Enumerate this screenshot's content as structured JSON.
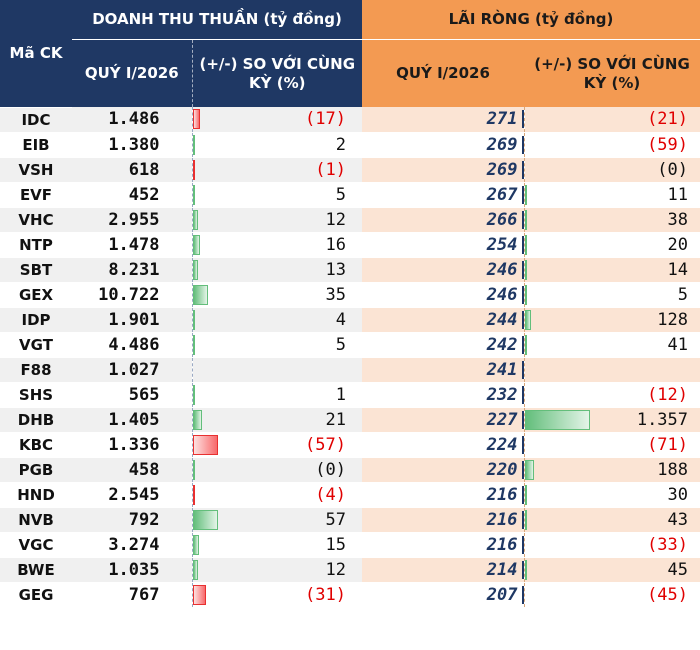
{
  "headers": {
    "ma_ck": "Mã CK",
    "revenue_group": "DOANH THU THUẦN (tỷ đồng)",
    "profit_group": "LÃI RÒNG (tỷ đồng)",
    "quarter": "QUÝ I/2026",
    "change": "(+/-) SO VỚI CÙNG KỲ (%)"
  },
  "rows": [
    {
      "ticker": "IDC",
      "revenue": "1.486",
      "rev_change": "(17)",
      "rev_change_value": -17,
      "profit": "271",
      "profit_change": "(21)",
      "profit_change_value": -21
    },
    {
      "ticker": "EIB",
      "revenue": "1.380",
      "rev_change": "2",
      "rev_change_value": 2,
      "profit": "269",
      "profit_change": "(59)",
      "profit_change_value": -59
    },
    {
      "ticker": "VSH",
      "revenue": "618",
      "rev_change": "(1)",
      "rev_change_value": -1,
      "profit": "269",
      "profit_change": "(0)",
      "profit_change_value": 0
    },
    {
      "ticker": "EVF",
      "revenue": "452",
      "rev_change": "5",
      "rev_change_value": 5,
      "profit": "267",
      "profit_change": "11",
      "profit_change_value": 11
    },
    {
      "ticker": "VHC",
      "revenue": "2.955",
      "rev_change": "12",
      "rev_change_value": 12,
      "profit": "266",
      "profit_change": "38",
      "profit_change_value": 38
    },
    {
      "ticker": "NTP",
      "revenue": "1.478",
      "rev_change": "16",
      "rev_change_value": 16,
      "profit": "254",
      "profit_change": "20",
      "profit_change_value": 20
    },
    {
      "ticker": "SBT",
      "revenue": "8.231",
      "rev_change": "13",
      "rev_change_value": 13,
      "profit": "246",
      "profit_change": "14",
      "profit_change_value": 14
    },
    {
      "ticker": "GEX",
      "revenue": "10.722",
      "rev_change": "35",
      "rev_change_value": 35,
      "profit": "246",
      "profit_change": "5",
      "profit_change_value": 5
    },
    {
      "ticker": "IDP",
      "revenue": "1.901",
      "rev_change": "4",
      "rev_change_value": 4,
      "profit": "244",
      "profit_change": "128",
      "profit_change_value": 128
    },
    {
      "ticker": "VGT",
      "revenue": "4.486",
      "rev_change": "5",
      "rev_change_value": 5,
      "profit": "242",
      "profit_change": "41",
      "profit_change_value": 41
    },
    {
      "ticker": "F88",
      "revenue": "1.027",
      "rev_change": "",
      "rev_change_value": null,
      "profit": "241",
      "profit_change": "",
      "profit_change_value": null
    },
    {
      "ticker": "SHS",
      "revenue": "565",
      "rev_change": "1",
      "rev_change_value": 1,
      "profit": "232",
      "profit_change": "(12)",
      "profit_change_value": -12
    },
    {
      "ticker": "DHB",
      "revenue": "1.405",
      "rev_change": "21",
      "rev_change_value": 21,
      "profit": "227",
      "profit_change": "1.357",
      "profit_change_value": 1357
    },
    {
      "ticker": "KBC",
      "revenue": "1.336",
      "rev_change": "(57)",
      "rev_change_value": -57,
      "profit": "224",
      "profit_change": "(71)",
      "profit_change_value": -71
    },
    {
      "ticker": "PGB",
      "revenue": "458",
      "rev_change": "(0)",
      "rev_change_value": 0,
      "profit": "220",
      "profit_change": "188",
      "profit_change_value": 188
    },
    {
      "ticker": "HND",
      "revenue": "2.545",
      "rev_change": "(4)",
      "rev_change_value": -4,
      "profit": "216",
      "profit_change": "30",
      "profit_change_value": 30
    },
    {
      "ticker": "NVB",
      "revenue": "792",
      "rev_change": "57",
      "rev_change_value": 57,
      "profit": "216",
      "profit_change": "43",
      "profit_change_value": 43
    },
    {
      "ticker": "VGC",
      "revenue": "3.274",
      "rev_change": "15",
      "rev_change_value": 15,
      "profit": "216",
      "profit_change": "(33)",
      "profit_change_value": -33
    },
    {
      "ticker": "BWE",
      "revenue": "1.035",
      "rev_change": "12",
      "rev_change_value": 12,
      "profit": "214",
      "profit_change": "45",
      "profit_change_value": 45
    },
    {
      "ticker": "GEG",
      "revenue": "767",
      "rev_change": "(31)",
      "rev_change_value": -31,
      "profit": "207",
      "profit_change": "(45)",
      "profit_change_value": -45
    }
  ]
}
